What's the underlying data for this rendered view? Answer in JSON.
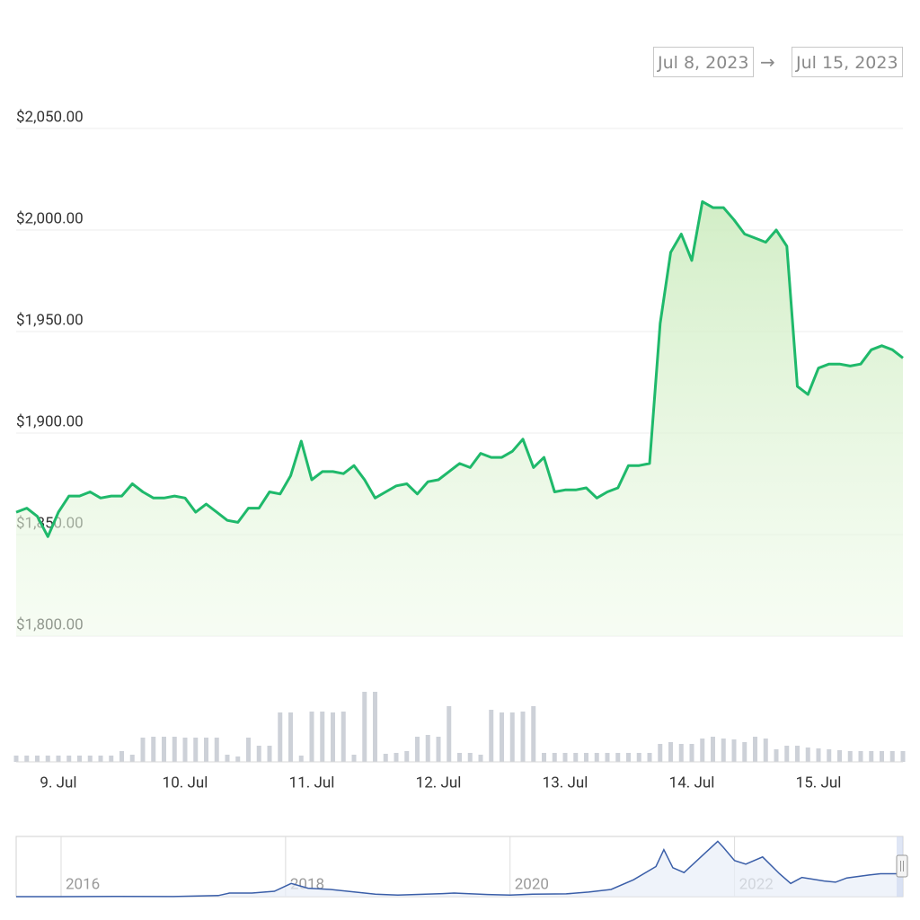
{
  "date_range": {
    "from": "Jul 8, 2023",
    "separator": "→",
    "to": "Jul 15, 2023"
  },
  "chart_data": [
    {
      "type": "line",
      "categories": [
        null,
        null,
        null,
        null,
        "9. Jul",
        null,
        null,
        null,
        null,
        null,
        null,
        null,
        null,
        null,
        null,
        null,
        "10. Jul",
        null,
        null,
        null,
        null,
        null,
        null,
        null,
        null,
        null,
        null,
        null,
        "11. Jul",
        null,
        null,
        null,
        null,
        null,
        null,
        null,
        null,
        null,
        null,
        null,
        "12. Jul",
        null,
        null,
        null,
        null,
        null,
        null,
        null,
        null,
        null,
        null,
        null,
        "13. Jul",
        null,
        null,
        null,
        null,
        null,
        null,
        null,
        null,
        null,
        null,
        null,
        "14. Jul",
        null,
        null,
        null,
        null,
        null,
        null,
        null,
        null,
        null,
        null,
        null,
        "15. Jul",
        null,
        null,
        null,
        null,
        null,
        null,
        null,
        null
      ],
      "values": [
        1861,
        1863,
        1859,
        1849,
        1861,
        1869,
        1869,
        1871,
        1868,
        1869,
        1869,
        1875,
        1871,
        1868,
        1868,
        1869,
        1868,
        1861,
        1865,
        1861,
        1857,
        1856,
        1863,
        1863,
        1871,
        1870,
        1879,
        1896,
        1877,
        1881,
        1881,
        1880,
        1884,
        1877,
        1868,
        1871,
        1874,
        1875,
        1870,
        1876,
        1877,
        1881,
        1885,
        1883,
        1890,
        1888,
        1888,
        1891,
        1897,
        1883,
        1888,
        1871,
        1872,
        1872,
        1873,
        1868,
        1871,
        1873,
        1884,
        1884,
        1885,
        1954,
        1989,
        1998,
        1985,
        2014,
        2011,
        2011,
        2005,
        1998,
        1996,
        1994,
        2000,
        1992,
        1923,
        1919,
        1932,
        1934,
        1934,
        1933,
        1934,
        1941,
        1943,
        1941,
        1937
      ],
      "color": "#1fb96b",
      "ylim": [
        1800,
        2050
      ],
      "yticks": [
        {
          "value": 1800,
          "label": "$1,800.00"
        },
        {
          "value": 1850,
          "label": "$1,850.00"
        },
        {
          "value": 1900,
          "label": "$1,900.00"
        },
        {
          "value": 1950,
          "label": "$1,950.00"
        },
        {
          "value": 2000,
          "label": "$2,000.00"
        },
        {
          "value": 2050,
          "label": "$2,050.00"
        }
      ],
      "grid": true
    },
    {
      "type": "bar",
      "values": [
        7,
        7,
        7,
        7,
        7,
        7,
        7,
        7,
        7,
        7,
        12,
        8,
        27,
        28,
        28,
        28,
        27,
        27,
        27,
        27,
        8,
        6,
        27,
        18,
        18,
        55,
        55,
        7,
        56,
        56,
        55,
        56,
        8,
        78,
        78,
        9,
        10,
        12,
        28,
        30,
        28,
        62,
        10,
        10,
        8,
        58,
        55,
        55,
        56,
        62,
        10,
        10,
        10,
        10,
        10,
        10,
        10,
        10,
        10,
        10,
        10,
        20,
        22,
        20,
        20,
        26,
        28,
        26,
        25,
        22,
        28,
        26,
        14,
        18,
        18,
        16,
        15,
        14,
        13,
        12,
        12,
        12,
        12,
        12,
        12
      ],
      "color": "#cdd1d8",
      "ylim": [
        0,
        100
      ]
    },
    {
      "type": "area",
      "x": [
        2015.6,
        2016.0,
        2016.5,
        2017.0,
        2017.4,
        2017.5,
        2017.7,
        2017.9,
        2018.05,
        2018.2,
        2018.4,
        2018.6,
        2018.8,
        2019.0,
        2019.4,
        2019.5,
        2019.8,
        2020.0,
        2020.2,
        2020.5,
        2020.7,
        2020.9,
        2021.1,
        2021.3,
        2021.37,
        2021.45,
        2021.55,
        2021.7,
        2021.85,
        2021.9,
        2022.0,
        2022.1,
        2022.25,
        2022.4,
        2022.5,
        2022.6,
        2022.8,
        2022.9,
        2023.0,
        2023.2,
        2023.3,
        2023.5
      ],
      "values": [
        1,
        1,
        12,
        8,
        90,
        300,
        300,
        450,
        1100,
        700,
        600,
        400,
        200,
        130,
        250,
        300,
        180,
        130,
        200,
        230,
        380,
        600,
        1400,
        2500,
        3900,
        2400,
        2000,
        3300,
        4600,
        4100,
        3000,
        2700,
        3300,
        1900,
        1100,
        1600,
        1300,
        1200,
        1550,
        1800,
        1900,
        1900
      ],
      "color": "#3a5ea8",
      "xlim": [
        2015.6,
        2023.5
      ],
      "xticks": [
        2016,
        2018,
        2020,
        2022
      ],
      "ylim": [
        0,
        5000
      ],
      "grid": true
    }
  ]
}
